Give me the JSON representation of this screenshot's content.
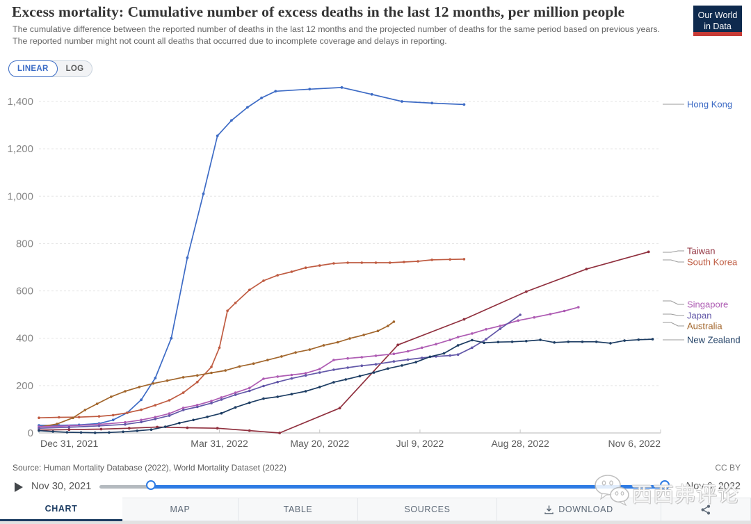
{
  "header": {
    "title": "Excess mortality: Cumulative number of excess deaths in the last 12 months, per million people",
    "subtitle": "The cumulative difference between the reported number of deaths in the last 12 months and the projected number of deaths for the same period based on previous years. The reported number might not count all deaths that occurred due to incomplete coverage and delays in reporting.",
    "logo": {
      "line1": "Our World",
      "line2": "in Data"
    }
  },
  "scale_toggle": {
    "linear": "LINEAR",
    "log": "LOG",
    "active": "LINEAR"
  },
  "chart_data": {
    "type": "line",
    "title": "Excess mortality: Cumulative number of excess deaths in the last 12 months, per million people",
    "xlabel": "",
    "ylabel": "",
    "ylim": [
      0,
      1400
    ],
    "x_range_days": [
      0,
      310
    ],
    "grid": "dashed-horizontal",
    "legend_position": "right",
    "y_ticks": [
      {
        "value": 0,
        "label": "0"
      },
      {
        "value": 200,
        "label": "200"
      },
      {
        "value": 400,
        "label": "400"
      },
      {
        "value": 600,
        "label": "600"
      },
      {
        "value": 800,
        "label": "800"
      },
      {
        "value": 1000,
        "label": "1,000"
      },
      {
        "value": 1200,
        "label": "1,200"
      },
      {
        "value": 1400,
        "label": "1,400"
      }
    ],
    "x_ticks": [
      {
        "label": "Dec 31, 2021",
        "day": 0
      },
      {
        "label": "Mar 31, 2022",
        "day": 90
      },
      {
        "label": "May 20, 2022",
        "day": 140
      },
      {
        "label": "Jul 9, 2022",
        "day": 190
      },
      {
        "label": "Aug 28, 2022",
        "day": 240
      },
      {
        "label": "Nov 6, 2022",
        "day": 310
      }
    ],
    "series": [
      {
        "name": "Hong Kong",
        "color": "#3d6bc5",
        "marker_r": 1.9,
        "points": [
          [
            0,
            32
          ],
          [
            10,
            32
          ],
          [
            20,
            34
          ],
          [
            30,
            40
          ],
          [
            37,
            55
          ],
          [
            44,
            85
          ],
          [
            51,
            140
          ],
          [
            58,
            232
          ],
          [
            66,
            400
          ],
          [
            74,
            740
          ],
          [
            82,
            1010
          ],
          [
            89,
            1255
          ],
          [
            96,
            1320
          ],
          [
            104,
            1375
          ],
          [
            111,
            1415
          ],
          [
            118,
            1443
          ],
          [
            135,
            1452
          ],
          [
            151,
            1459
          ],
          [
            166,
            1430
          ],
          [
            181,
            1400
          ],
          [
            196,
            1393
          ],
          [
            212,
            1387
          ]
        ]
      },
      {
        "name": "South Korea",
        "color": "#bf5b41",
        "marker_r": 1.8,
        "points": [
          [
            0,
            64
          ],
          [
            10,
            66
          ],
          [
            20,
            67
          ],
          [
            30,
            70
          ],
          [
            37,
            75
          ],
          [
            44,
            85
          ],
          [
            51,
            98
          ],
          [
            58,
            117
          ],
          [
            65,
            138
          ],
          [
            72,
            170
          ],
          [
            79,
            215
          ],
          [
            86,
            279
          ],
          [
            90,
            360
          ],
          [
            94,
            516
          ],
          [
            98,
            549
          ],
          [
            105,
            604
          ],
          [
            112,
            643
          ],
          [
            119,
            666
          ],
          [
            126,
            681
          ],
          [
            133,
            698
          ],
          [
            140,
            707
          ],
          [
            147,
            716
          ],
          [
            154,
            719
          ],
          [
            161,
            719
          ],
          [
            168,
            719
          ],
          [
            175,
            719
          ],
          [
            182,
            722
          ],
          [
            189,
            725
          ],
          [
            196,
            731
          ],
          [
            205,
            733
          ],
          [
            212,
            734
          ]
        ]
      },
      {
        "name": "Taiwan",
        "color": "#90303e",
        "marker_r": 1.9,
        "points": [
          [
            0,
            12
          ],
          [
            15,
            14
          ],
          [
            31,
            16
          ],
          [
            45,
            20
          ],
          [
            59,
            25
          ],
          [
            74,
            22
          ],
          [
            89,
            20
          ],
          [
            105,
            10
          ],
          [
            120,
            0
          ],
          [
            150,
            105
          ],
          [
            179,
            372
          ],
          [
            212,
            480
          ],
          [
            243,
            597
          ],
          [
            273,
            692
          ],
          [
            304,
            765
          ]
        ]
      },
      {
        "name": "Australia",
        "color": "#a2662c",
        "marker_r": 1.8,
        "points": [
          [
            0,
            25
          ],
          [
            9,
            38
          ],
          [
            17,
            64
          ],
          [
            23,
            97
          ],
          [
            29,
            123
          ],
          [
            36,
            153
          ],
          [
            43,
            176
          ],
          [
            50,
            194
          ],
          [
            57,
            209
          ],
          [
            64,
            221
          ],
          [
            72,
            235
          ],
          [
            79,
            243
          ],
          [
            86,
            254
          ],
          [
            93,
            264
          ],
          [
            100,
            281
          ],
          [
            107,
            293
          ],
          [
            114,
            308
          ],
          [
            121,
            323
          ],
          [
            128,
            340
          ],
          [
            135,
            352
          ],
          [
            142,
            370
          ],
          [
            149,
            383
          ],
          [
            155,
            399
          ],
          [
            162,
            414
          ],
          [
            169,
            431
          ],
          [
            174,
            452
          ],
          [
            177,
            470
          ]
        ]
      },
      {
        "name": "Singapore",
        "color": "#ae5cb3",
        "marker_r": 1.8,
        "points": [
          [
            0,
            26
          ],
          [
            15,
            30
          ],
          [
            30,
            36
          ],
          [
            43,
            45
          ],
          [
            51,
            55
          ],
          [
            58,
            67
          ],
          [
            65,
            82
          ],
          [
            72,
            106
          ],
          [
            79,
            118
          ],
          [
            86,
            135
          ],
          [
            91,
            150
          ],
          [
            98,
            170
          ],
          [
            105,
            190
          ],
          [
            112,
            229
          ],
          [
            119,
            238
          ],
          [
            126,
            245
          ],
          [
            133,
            252
          ],
          [
            140,
            270
          ],
          [
            147,
            308
          ],
          [
            154,
            315
          ],
          [
            161,
            320
          ],
          [
            168,
            326
          ],
          [
            177,
            334
          ],
          [
            184,
            345
          ],
          [
            191,
            360
          ],
          [
            198,
            375
          ],
          [
            205,
            393
          ],
          [
            209,
            405
          ],
          [
            216,
            420
          ],
          [
            223,
            438
          ],
          [
            230,
            452
          ],
          [
            239,
            475
          ],
          [
            247,
            488
          ],
          [
            255,
            502
          ],
          [
            262,
            515
          ],
          [
            269,
            531
          ]
        ]
      },
      {
        "name": "Japan",
        "color": "#6257a8",
        "marker_r": 1.8,
        "points": [
          [
            0,
            20
          ],
          [
            15,
            24
          ],
          [
            30,
            30
          ],
          [
            43,
            36
          ],
          [
            51,
            46
          ],
          [
            58,
            59
          ],
          [
            65,
            73
          ],
          [
            72,
            97
          ],
          [
            79,
            110
          ],
          [
            86,
            126
          ],
          [
            91,
            141
          ],
          [
            98,
            161
          ],
          [
            105,
            178
          ],
          [
            112,
            198
          ],
          [
            119,
            215
          ],
          [
            126,
            230
          ],
          [
            133,
            243
          ],
          [
            140,
            255
          ],
          [
            147,
            267
          ],
          [
            154,
            276
          ],
          [
            161,
            284
          ],
          [
            168,
            290
          ],
          [
            177,
            302
          ],
          [
            184,
            310
          ],
          [
            191,
            317
          ],
          [
            198,
            323
          ],
          [
            205,
            327
          ],
          [
            209,
            331
          ],
          [
            216,
            360
          ],
          [
            223,
            396
          ],
          [
            230,
            440
          ],
          [
            240,
            499
          ]
        ]
      },
      {
        "name": "New Zealand",
        "color": "#1d3d63",
        "marker_r": 1.8,
        "points": [
          [
            0,
            10
          ],
          [
            7,
            6
          ],
          [
            14,
            3
          ],
          [
            21,
            2
          ],
          [
            28,
            1
          ],
          [
            35,
            2
          ],
          [
            42,
            5
          ],
          [
            49,
            9
          ],
          [
            56,
            14
          ],
          [
            63,
            26
          ],
          [
            70,
            42
          ],
          [
            77,
            55
          ],
          [
            84,
            68
          ],
          [
            91,
            83
          ],
          [
            98,
            108
          ],
          [
            105,
            128
          ],
          [
            112,
            145
          ],
          [
            119,
            153
          ],
          [
            126,
            164
          ],
          [
            133,
            176
          ],
          [
            140,
            194
          ],
          [
            147,
            214
          ],
          [
            153,
            226
          ],
          [
            160,
            240
          ],
          [
            167,
            255
          ],
          [
            174,
            272
          ],
          [
            181,
            285
          ],
          [
            188,
            299
          ],
          [
            195,
            322
          ],
          [
            202,
            336
          ],
          [
            209,
            370
          ],
          [
            216,
            392
          ],
          [
            222,
            381
          ],
          [
            229,
            384
          ],
          [
            236,
            385
          ],
          [
            243,
            388
          ],
          [
            250,
            393
          ],
          [
            257,
            382
          ],
          [
            264,
            385
          ],
          [
            271,
            385
          ],
          [
            278,
            385
          ],
          [
            285,
            379
          ],
          [
            292,
            390
          ],
          [
            299,
            394
          ],
          [
            306,
            396
          ]
        ]
      }
    ]
  },
  "legend": [
    {
      "label": "Hong Kong",
      "color": "#3d6bc5",
      "y": 150,
      "tick_y": 150
    },
    {
      "label": "Taiwan",
      "color": "#90303e",
      "y": 361,
      "tick_y": 363
    },
    {
      "label": "South Korea",
      "color": "#bf5b41",
      "y": 377,
      "tick_y": 374
    },
    {
      "label": "Singapore",
      "color": "#ae5cb3",
      "y": 438,
      "tick_y": 433
    },
    {
      "label": "Japan",
      "color": "#6257a8",
      "y": 454,
      "tick_y": 452
    },
    {
      "label": "Australia",
      "color": "#a2662c",
      "y": 469,
      "tick_y": 464
    },
    {
      "label": "New Zealand",
      "color": "#1d3d63",
      "y": 489,
      "tick_y": 489
    }
  ],
  "footer": {
    "source": "Source: Human Mortality Database (2022), World Mortality Dataset (2022)",
    "license": "CC BY"
  },
  "timeline": {
    "start_label": "Nov 30, 2021",
    "end_label": "Nov 6, 2022",
    "active_color": "#2e7be4"
  },
  "tabs": [
    {
      "label": "CHART",
      "active": true
    },
    {
      "label": "MAP",
      "active": false
    },
    {
      "label": "TABLE",
      "active": false
    },
    {
      "label": "SOURCES",
      "active": false
    },
    {
      "label": "DOWNLOAD",
      "active": false,
      "icon": "download-icon"
    },
    {
      "label": "",
      "active": false,
      "icon": "share-icon"
    }
  ],
  "watermark": {
    "text": "西西弗评论",
    "icon": "wechat-bubbles-icon"
  }
}
